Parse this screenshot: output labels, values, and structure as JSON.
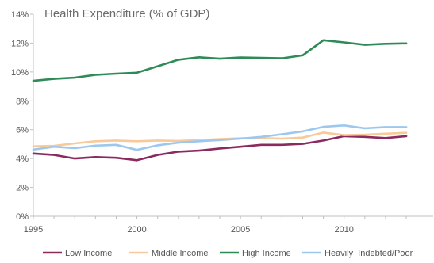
{
  "chart_data": {
    "type": "line",
    "title": "Health Expenditure (% of GDP)",
    "xlabel": "",
    "ylabel": "",
    "xlim": [
      1995,
      2014.3
    ],
    "ylim": [
      0,
      14
    ],
    "x_ticks": [
      1995,
      2000,
      2005,
      2010
    ],
    "y_ticks": [
      0,
      2,
      4,
      6,
      8,
      10,
      12,
      14
    ],
    "y_tick_labels": [
      "0%",
      "2%",
      "4%",
      "6%",
      "8%",
      "10%",
      "12%",
      "14%"
    ],
    "grid": false,
    "legend_position": "bottom",
    "x": [
      1995,
      1996,
      1997,
      1998,
      1999,
      2000,
      2001,
      2002,
      2003,
      2004,
      2005,
      2006,
      2007,
      2008,
      2009,
      2010,
      2011,
      2012,
      2013
    ],
    "series": [
      {
        "name": "Low Income",
        "color": "#8b2a5e",
        "values": [
          4.35,
          4.25,
          4.0,
          4.1,
          4.05,
          3.88,
          4.25,
          4.48,
          4.55,
          4.7,
          4.82,
          4.95,
          4.95,
          5.02,
          5.25,
          5.55,
          5.5,
          5.42,
          5.55
        ]
      },
      {
        "name": "Middle Income",
        "color": "#f8c99a",
        "values": [
          4.85,
          4.88,
          5.05,
          5.2,
          5.25,
          5.2,
          5.25,
          5.22,
          5.28,
          5.35,
          5.4,
          5.42,
          5.38,
          5.45,
          5.8,
          5.62,
          5.65,
          5.72,
          5.78
        ]
      },
      {
        "name": "High Income",
        "color": "#2e8b57",
        "values": [
          9.38,
          9.52,
          9.6,
          9.8,
          9.88,
          9.95,
          10.4,
          10.85,
          11.02,
          10.92,
          11.0,
          10.98,
          10.95,
          11.15,
          12.2,
          12.05,
          11.88,
          11.95,
          11.98
        ]
      },
      {
        "name": "Heavily  Indebted/Poor",
        "color": "#9cc8f0",
        "values": [
          4.62,
          4.82,
          4.72,
          4.9,
          4.95,
          4.6,
          4.92,
          5.1,
          5.2,
          5.28,
          5.38,
          5.5,
          5.68,
          5.88,
          6.2,
          6.3,
          6.1,
          6.18,
          6.18
        ]
      }
    ]
  }
}
